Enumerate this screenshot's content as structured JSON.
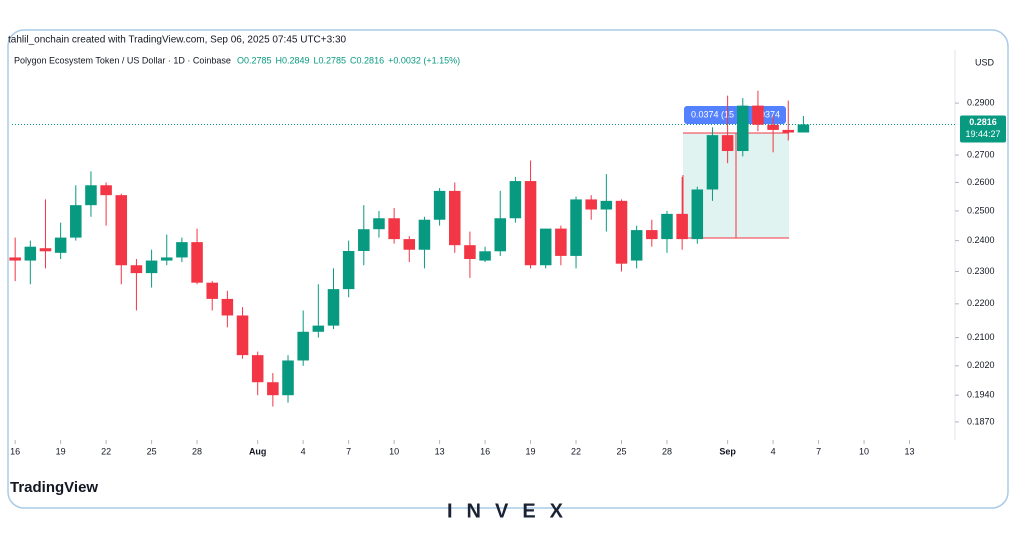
{
  "header": {
    "credit": "tahlil_onchain created with TradingView.com, Sep 06, 2025 07:45 UTC+3:30",
    "logo": "TradingView",
    "watermark": "INVEX"
  },
  "chart_data": {
    "type": "candlestick",
    "title": "Polygon Ecosystem Token / US Dollar · 1D · Coinbase",
    "ohlc_labels": [
      "O0.2785",
      "H0.2849",
      "L0.2785",
      "C0.2816",
      "+0.0032 (+1.15%)"
    ],
    "currency": "USD",
    "last_price_label": "0.2816",
    "countdown": "19:44:27",
    "measure_labels": [
      "0.0374 (15",
      "0.0374"
    ],
    "log": true,
    "grid": false,
    "up_color": "#089981",
    "down_color": "#f23645",
    "x": [
      "2025-07-16",
      "2025-07-17",
      "2025-07-18",
      "2025-07-19",
      "2025-07-20",
      "2025-07-21",
      "2025-07-22",
      "2025-07-23",
      "2025-07-24",
      "2025-07-25",
      "2025-07-26",
      "2025-07-27",
      "2025-07-28",
      "2025-07-29",
      "2025-07-30",
      "2025-07-31",
      "2025-08-01",
      "2025-08-02",
      "2025-08-03",
      "2025-08-04",
      "2025-08-05",
      "2025-08-06",
      "2025-08-07",
      "2025-08-08",
      "2025-08-09",
      "2025-08-10",
      "2025-08-11",
      "2025-08-12",
      "2025-08-13",
      "2025-08-14",
      "2025-08-15",
      "2025-08-16",
      "2025-08-17",
      "2025-08-18",
      "2025-08-19",
      "2025-08-20",
      "2025-08-21",
      "2025-08-22",
      "2025-08-23",
      "2025-08-24",
      "2025-08-25",
      "2025-08-26",
      "2025-08-27",
      "2025-08-28",
      "2025-08-29",
      "2025-08-30",
      "2025-08-31",
      "2025-09-01",
      "2025-09-02",
      "2025-09-03",
      "2025-09-04",
      "2025-09-05",
      "2025-09-06"
    ],
    "open": [
      0.2345,
      0.2335,
      0.2375,
      0.236,
      0.241,
      0.252,
      0.259,
      0.2555,
      0.232,
      0.2295,
      0.2335,
      0.2345,
      0.2395,
      0.2265,
      0.2215,
      0.2165,
      0.205,
      0.1975,
      0.194,
      0.2035,
      0.2117,
      0.2135,
      0.2245,
      0.2366,
      0.2438,
      0.2475,
      0.2405,
      0.237,
      0.247,
      0.257,
      0.2385,
      0.2335,
      0.2365,
      0.2475,
      0.2605,
      0.232,
      0.244,
      0.235,
      0.254,
      0.2505,
      0.2535,
      0.2335,
      0.2435,
      0.2405,
      0.249,
      0.2405,
      0.2575,
      0.2775,
      0.2715,
      0.289,
      0.2815,
      0.2795,
      0.2785
    ],
    "high": [
      0.241,
      0.24,
      0.254,
      0.246,
      0.259,
      0.264,
      0.26,
      0.256,
      0.234,
      0.237,
      0.242,
      0.241,
      0.244,
      0.227,
      0.224,
      0.219,
      0.206,
      0.2,
      0.205,
      0.218,
      0.226,
      0.231,
      0.24,
      0.252,
      0.25,
      0.251,
      0.2415,
      0.248,
      0.258,
      0.26,
      0.243,
      0.238,
      0.257,
      0.262,
      0.268,
      0.244,
      0.245,
      0.255,
      0.2555,
      0.263,
      0.254,
      0.245,
      0.247,
      0.25,
      0.262,
      0.2585,
      0.2805,
      0.293,
      0.292,
      0.295,
      0.285,
      0.291,
      0.2849
    ],
    "low": [
      0.227,
      0.226,
      0.231,
      0.234,
      0.24,
      0.248,
      0.245,
      0.226,
      0.218,
      0.225,
      0.232,
      0.233,
      0.226,
      0.218,
      0.213,
      0.204,
      0.194,
      0.191,
      0.192,
      0.202,
      0.21,
      0.2125,
      0.222,
      0.232,
      0.241,
      0.239,
      0.233,
      0.231,
      0.245,
      0.236,
      0.228,
      0.233,
      0.235,
      0.246,
      0.231,
      0.231,
      0.232,
      0.231,
      0.247,
      0.243,
      0.23,
      0.231,
      0.238,
      0.236,
      0.237,
      0.239,
      0.2535,
      0.267,
      0.2695,
      0.279,
      0.271,
      0.2755,
      0.2785
    ],
    "close": [
      0.2335,
      0.238,
      0.2365,
      0.241,
      0.252,
      0.259,
      0.2555,
      0.232,
      0.2295,
      0.2335,
      0.2345,
      0.2395,
      0.2265,
      0.2215,
      0.2165,
      0.205,
      0.1975,
      0.194,
      0.2035,
      0.2117,
      0.2135,
      0.2245,
      0.2366,
      0.2438,
      0.2475,
      0.2405,
      0.237,
      0.247,
      0.257,
      0.2385,
      0.234,
      0.2365,
      0.2475,
      0.2605,
      0.232,
      0.244,
      0.235,
      0.254,
      0.2505,
      0.2535,
      0.2325,
      0.2435,
      0.2405,
      0.249,
      0.2405,
      0.2575,
      0.2775,
      0.2715,
      0.289,
      0.2815,
      0.2795,
      0.2785,
      0.2816
    ],
    "xlim": [
      "2025-07-15",
      "2025-09-16"
    ],
    "xticks": [
      {
        "value": "2025-07-16",
        "label": "16"
      },
      {
        "value": "2025-07-19",
        "label": "19"
      },
      {
        "value": "2025-07-22",
        "label": "22"
      },
      {
        "value": "2025-07-25",
        "label": "25"
      },
      {
        "value": "2025-07-28",
        "label": "28"
      },
      {
        "value": "2025-08-01",
        "label": "Aug"
      },
      {
        "value": "2025-08-04",
        "label": "4"
      },
      {
        "value": "2025-08-07",
        "label": "7"
      },
      {
        "value": "2025-08-10",
        "label": "10"
      },
      {
        "value": "2025-08-13",
        "label": "13"
      },
      {
        "value": "2025-08-16",
        "label": "16"
      },
      {
        "value": "2025-08-19",
        "label": "19"
      },
      {
        "value": "2025-08-22",
        "label": "22"
      },
      {
        "value": "2025-08-25",
        "label": "25"
      },
      {
        "value": "2025-08-28",
        "label": "28"
      },
      {
        "value": "2025-09-01",
        "label": "Sep"
      },
      {
        "value": "2025-09-04",
        "label": "4"
      },
      {
        "value": "2025-09-07",
        "label": "7"
      },
      {
        "value": "2025-09-10",
        "label": "10"
      },
      {
        "value": "2025-09-13",
        "label": "13"
      }
    ],
    "ylim": [
      0.1824,
      0.312
    ],
    "yticks": [
      {
        "value": 0.29,
        "label": "0.2900"
      },
      {
        "value": 0.27,
        "label": "0.2700"
      },
      {
        "value": 0.26,
        "label": "0.2600"
      },
      {
        "value": 0.25,
        "label": "0.2500"
      },
      {
        "value": 0.24,
        "label": "0.2400"
      },
      {
        "value": 0.23,
        "label": "0.2300"
      },
      {
        "value": 0.22,
        "label": "0.2200"
      },
      {
        "value": 0.21,
        "label": "0.2100"
      },
      {
        "value": 0.202,
        "label": "0.2020"
      },
      {
        "value": 0.194,
        "label": "0.1940"
      },
      {
        "value": 0.187,
        "label": "0.1870"
      }
    ]
  }
}
